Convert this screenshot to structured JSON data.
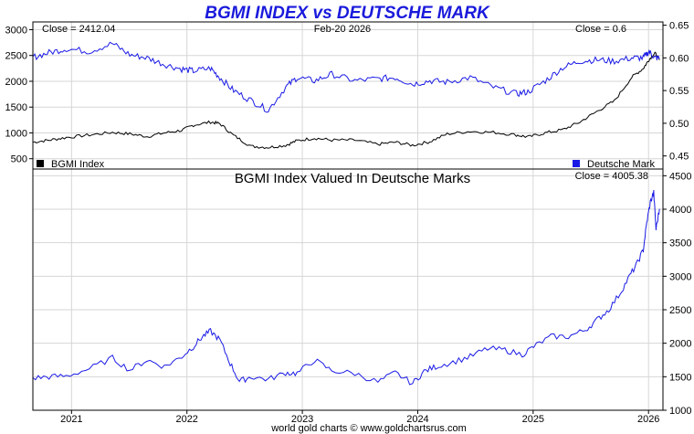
{
  "chart_data": [
    {
      "type": "line",
      "title": "BGMI INDEX vs DEUTSCHE MARK",
      "date_label": "Feb-20  2026",
      "left_close_label": "Close = 2412.04",
      "right_close_label": "Close = 0.6",
      "left_axis": {
        "ylim": [
          300,
          3150
        ],
        "ticks": [
          "500",
          "1000",
          "1500",
          "2000",
          "2500",
          "3000"
        ]
      },
      "right_axis": {
        "ylim": [
          0.43,
          0.655
        ],
        "ticks": [
          "0.45",
          "0.50",
          "0.55",
          "0.60",
          "0.65"
        ]
      },
      "x": [
        2020.71,
        2020.85,
        2021.0,
        2021.2,
        2021.4,
        2021.55,
        2021.7,
        2021.85,
        2022.0,
        2022.1,
        2022.25,
        2022.33,
        2022.45,
        2022.6,
        2022.75,
        2022.9,
        2023.0,
        2023.15,
        2023.3,
        2023.5,
        2023.7,
        2023.85,
        2024.0,
        2024.15,
        2024.3,
        2024.5,
        2024.7,
        2024.9,
        2025.0,
        2025.15,
        2025.3,
        2025.45,
        2025.6,
        2025.75,
        2025.9,
        2026.0,
        2026.05,
        2026.1,
        2026.14
      ],
      "series": [
        {
          "name": "BGMI Index",
          "color": "#000000",
          "axis": "left",
          "values": [
            820,
            860,
            910,
            960,
            1010,
            980,
            930,
            1000,
            1050,
            1150,
            1210,
            1180,
            950,
            740,
            720,
            760,
            850,
            900,
            860,
            860,
            780,
            820,
            760,
            830,
            980,
            1030,
            1010,
            960,
            920,
            1000,
            1060,
            1210,
            1420,
            1620,
            2080,
            2250,
            2420,
            2550,
            2412
          ]
        },
        {
          "name": "Deutsche Mark",
          "color": "#1a1ae6",
          "axis": "right",
          "values": [
            0.601,
            0.608,
            0.614,
            0.61,
            0.622,
            0.605,
            0.6,
            0.59,
            0.583,
            0.58,
            0.584,
            0.57,
            0.55,
            0.535,
            0.52,
            0.555,
            0.57,
            0.565,
            0.575,
            0.565,
            0.568,
            0.57,
            0.56,
            0.565,
            0.563,
            0.57,
            0.555,
            0.545,
            0.548,
            0.565,
            0.585,
            0.595,
            0.597,
            0.595,
            0.6,
            0.6,
            0.61,
            0.6,
            0.6
          ]
        }
      ],
      "legend": [
        {
          "label": "BGMI Index",
          "color": "#000000",
          "position": "bottom-left"
        },
        {
          "label": "Deutsche Mark",
          "color": "#1a1ae6",
          "position": "bottom-right"
        }
      ]
    },
    {
      "type": "line",
      "subtitle": "BGMI Index Valued In Deutsche Marks",
      "close_label": "Close = 4005.38",
      "ylim": [
        1000,
        4600
      ],
      "y_ticks": [
        "1000",
        "1500",
        "2000",
        "2500",
        "3000",
        "3500",
        "4000",
        "4500"
      ],
      "x": [
        2020.71,
        2020.85,
        2021.0,
        2021.2,
        2021.4,
        2021.55,
        2021.7,
        2021.85,
        2022.0,
        2022.1,
        2022.18,
        2022.25,
        2022.33,
        2022.42,
        2022.5,
        2022.6,
        2022.75,
        2022.9,
        2023.0,
        2023.15,
        2023.3,
        2023.5,
        2023.7,
        2023.85,
        2024.0,
        2024.1,
        2024.2,
        2024.35,
        2024.5,
        2024.65,
        2024.8,
        2024.95,
        2025.05,
        2025.2,
        2025.35,
        2025.5,
        2025.6,
        2025.7,
        2025.8,
        2025.88,
        2025.95,
        2026.0,
        2026.03,
        2026.06,
        2026.09,
        2026.11,
        2026.14
      ],
      "values": [
        1480,
        1500,
        1510,
        1620,
        1780,
        1600,
        1750,
        1650,
        1800,
        1950,
        2100,
        2180,
        2050,
        1700,
        1430,
        1500,
        1460,
        1560,
        1550,
        1750,
        1590,
        1550,
        1420,
        1560,
        1400,
        1580,
        1650,
        1720,
        1800,
        1920,
        1900,
        1830,
        1950,
        2100,
        2100,
        2200,
        2350,
        2500,
        2750,
        3000,
        3200,
        3400,
        3800,
        4100,
        4250,
        3700,
        4005
      ],
      "color": "#1a1ae6"
    }
  ],
  "x_axis_ticks": [
    "2021",
    "2022",
    "2023",
    "2024",
    "2025",
    "2026"
  ],
  "footer": "world gold charts © www.goldchartsrus.com"
}
